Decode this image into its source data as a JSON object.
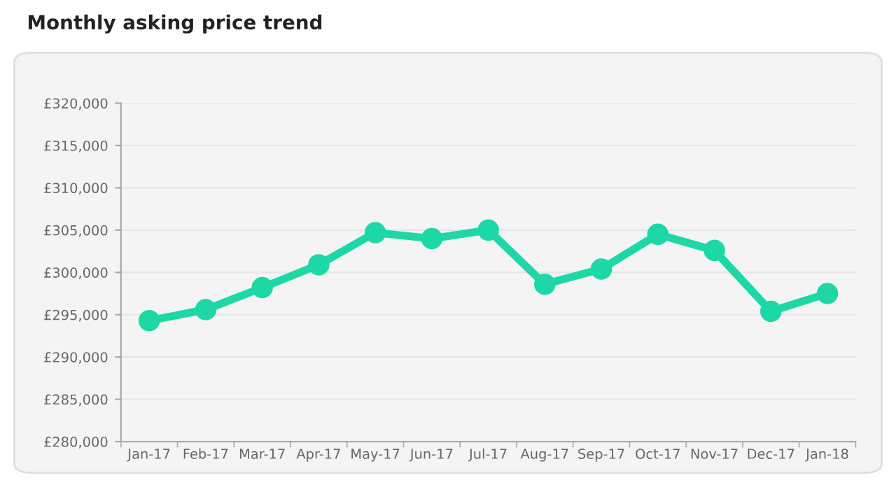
{
  "chart_data": {
    "type": "line",
    "title": "Monthly asking price trend",
    "categories": [
      "Jan-17",
      "Feb-17",
      "Mar-17",
      "Apr-17",
      "May-17",
      "Jun-17",
      "Jul-17",
      "Aug-17",
      "Sep-17",
      "Oct-17",
      "Nov-17",
      "Dec-17",
      "Jan-18"
    ],
    "series": [
      {
        "color": "#1dd8a6",
        "values": [
          294300,
          295600,
          298200,
          300900,
          304700,
          304000,
          305000,
          298600,
          300400,
          304500,
          302600,
          295400,
          297500
        ]
      }
    ],
    "ylim": [
      280000,
      320000
    ],
    "yticks": [
      {
        "value": 280000,
        "label": "£280,000"
      },
      {
        "value": 285000,
        "label": "£285,000"
      },
      {
        "value": 290000,
        "label": "£290,000"
      },
      {
        "value": 295000,
        "label": "£295,000"
      },
      {
        "value": 300000,
        "label": "£300,000"
      },
      {
        "value": 305000,
        "label": "£305,000"
      },
      {
        "value": 310000,
        "label": "£310,000"
      },
      {
        "value": 315000,
        "label": "£315,000"
      },
      {
        "value": 320000,
        "label": "£320,000"
      }
    ],
    "grid": "y",
    "marker": "circle",
    "line_style": "solid"
  }
}
